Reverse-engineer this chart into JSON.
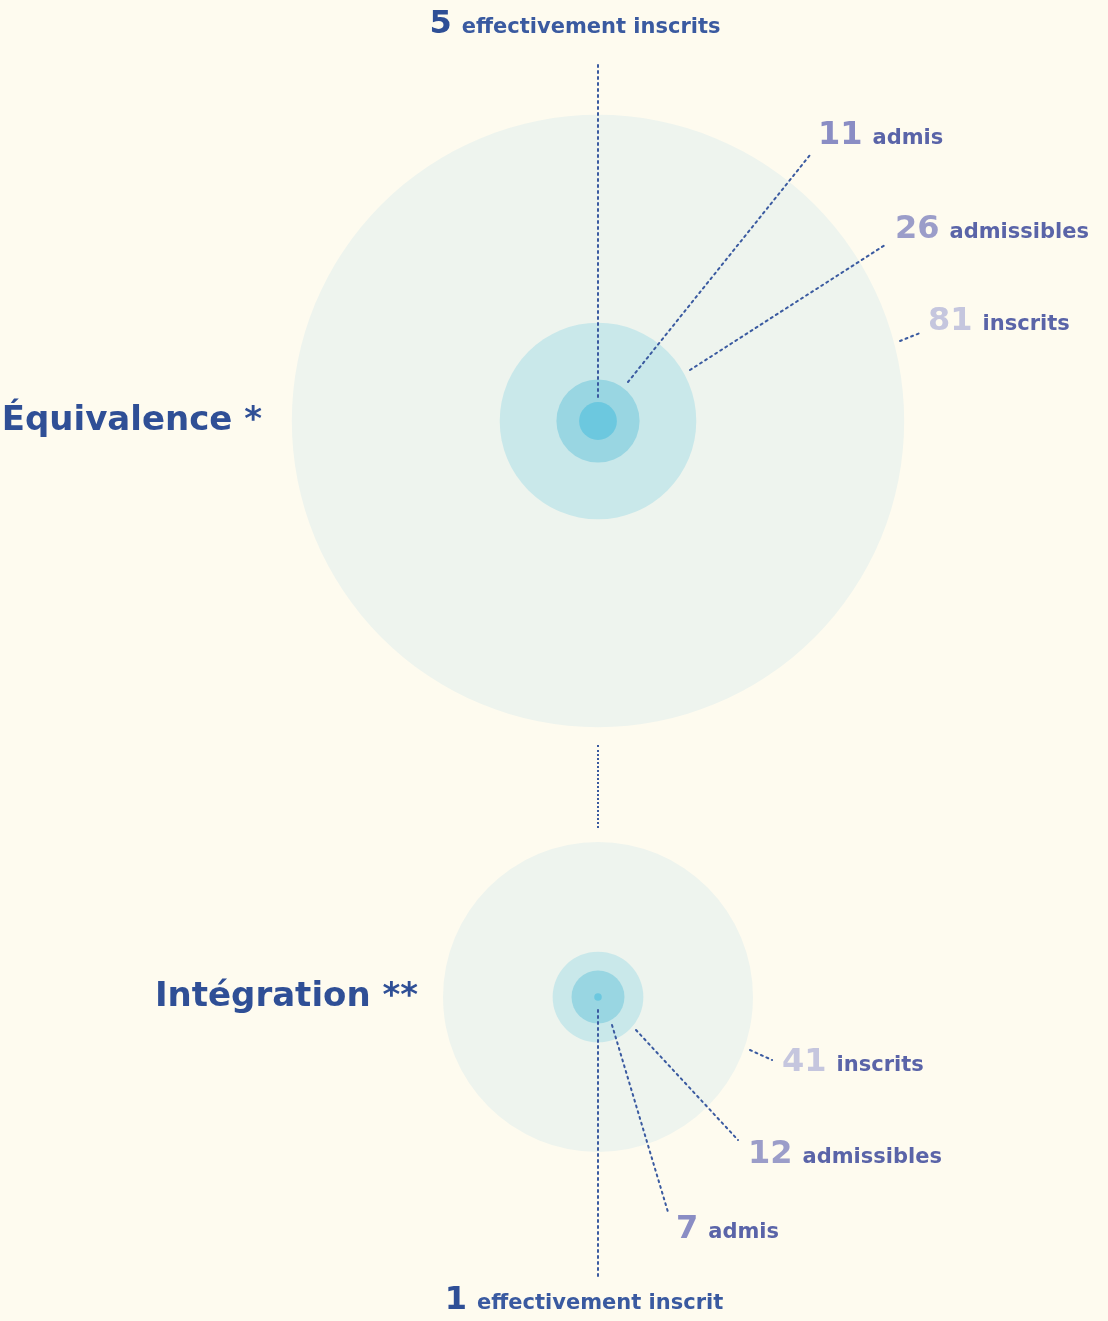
{
  "chart_data": [
    {
      "type": "other",
      "title": "Équivalence *",
      "categories": [
        "inscrits",
        "admissibles",
        "admis",
        "effectivement inscrits"
      ],
      "values": [
        81,
        26,
        11,
        5
      ],
      "colors": [
        "#eef4ee",
        "#c9e8ea",
        "#99d6e2",
        "#6cc8df"
      ],
      "data_labels": true
    },
    {
      "type": "other",
      "title": "Intégration **",
      "categories": [
        "inscrits",
        "admissibles",
        "admis",
        "effectivement inscrit"
      ],
      "values": [
        41,
        12,
        7,
        1
      ],
      "colors": [
        "#eef4ee",
        "#c9e8ea",
        "#99d6e2",
        "#6cc8df"
      ],
      "data_labels": true
    }
  ]
}
